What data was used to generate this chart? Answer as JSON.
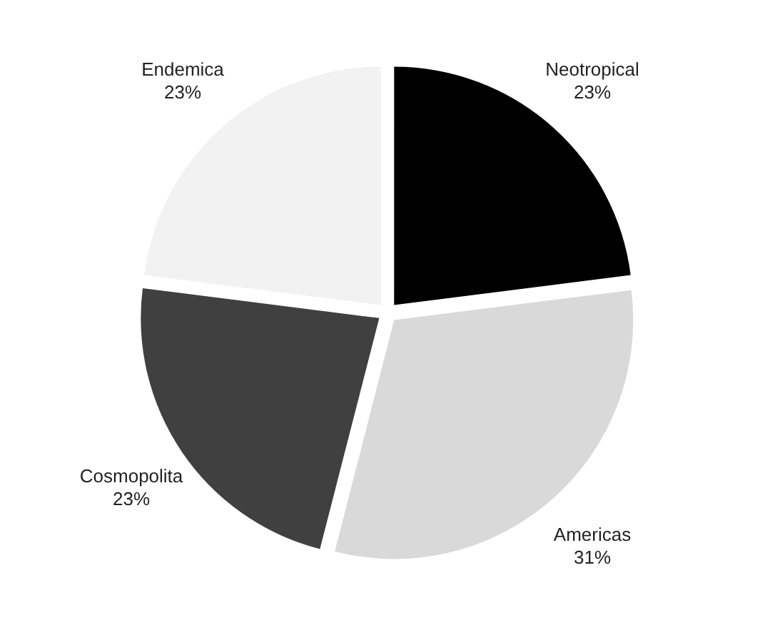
{
  "chart_data": {
    "type": "pie",
    "categories": [
      "Neotropical",
      "Americas",
      "Cosmopolita",
      "Endemica"
    ],
    "values": [
      23,
      31,
      23,
      23
    ],
    "value_labels": [
      "23%",
      "31%",
      "23%",
      "23%"
    ],
    "colors": [
      "#000000",
      "#d9d9d9",
      "#404040",
      "#f2f2f2"
    ],
    "legend": false
  }
}
